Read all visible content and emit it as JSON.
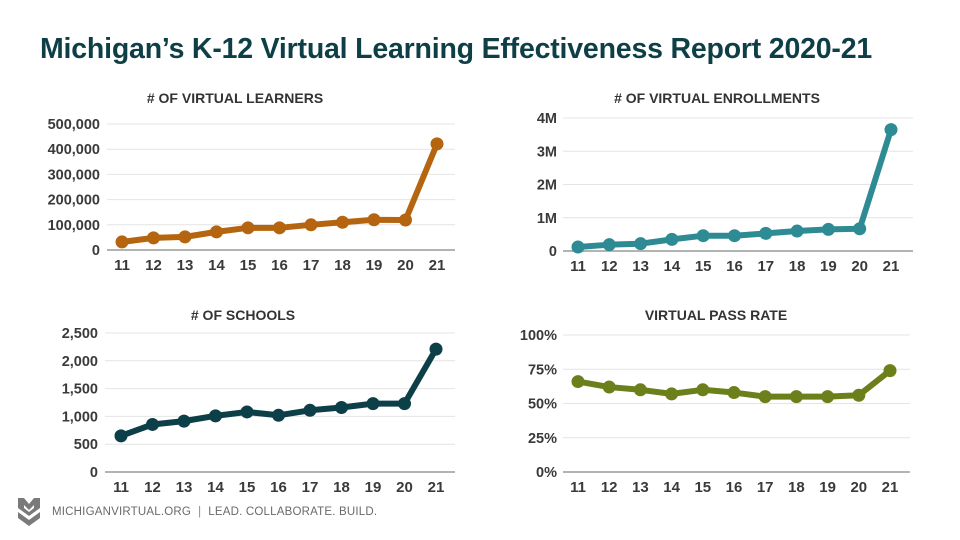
{
  "page": {
    "title": "Michigan’s K-12 Virtual Learning Effectiveness Report 2020-21"
  },
  "footer": {
    "logo_icon": "michigan-virtual-chevron-logo",
    "site": "MICHIGANVIRTUAL.ORG",
    "separator": "|",
    "tagline": "LEAD. COLLABORATE. BUILD."
  },
  "chart_data": [
    {
      "id": "learners",
      "type": "line",
      "title": "# OF VIRTUAL LEARNERS",
      "xlabel": "",
      "ylabel": "",
      "categories": [
        "11",
        "12",
        "13",
        "14",
        "15",
        "16",
        "17",
        "18",
        "19",
        "20",
        "21"
      ],
      "values": [
        32000,
        48000,
        52000,
        72000,
        88000,
        88000,
        100000,
        110000,
        120000,
        119000,
        421000
      ],
      "ylim": [
        0,
        500000
      ],
      "yticks": [
        0,
        100000,
        200000,
        300000,
        400000,
        500000
      ],
      "ytick_labels": [
        "0",
        "100,000",
        "200,000",
        "300,000",
        "400,000",
        "500,000"
      ],
      "color": "#b5650f",
      "grid": true,
      "legend": "none"
    },
    {
      "id": "enrollments",
      "type": "line",
      "title": "# OF VIRTUAL ENROLLMENTS",
      "xlabel": "",
      "ylabel": "",
      "categories": [
        "11",
        "12",
        "13",
        "14",
        "15",
        "16",
        "17",
        "18",
        "19",
        "20",
        "21"
      ],
      "values": [
        120000,
        190000,
        220000,
        350000,
        460000,
        460000,
        530000,
        600000,
        650000,
        670000,
        3650000
      ],
      "ylim": [
        0,
        4000000
      ],
      "yticks": [
        0,
        1000000,
        2000000,
        3000000,
        4000000
      ],
      "ytick_labels": [
        "0",
        "1M",
        "2M",
        "3M",
        "4M"
      ],
      "color": "#2e8b94",
      "grid": true,
      "legend": "none"
    },
    {
      "id": "schools",
      "type": "line",
      "title": "# OF SCHOOLS",
      "xlabel": "",
      "ylabel": "",
      "categories": [
        "11",
        "12",
        "13",
        "14",
        "15",
        "16",
        "17",
        "18",
        "19",
        "20",
        "21"
      ],
      "values": [
        650,
        855,
        915,
        1010,
        1080,
        1020,
        1110,
        1160,
        1230,
        1230,
        2210
      ],
      "ylim": [
        0,
        2500
      ],
      "yticks": [
        0,
        500,
        1000,
        1500,
        2000,
        2500
      ],
      "ytick_labels": [
        "0",
        "500",
        "1,000",
        "1,500",
        "2,000",
        "2,500"
      ],
      "color": "#0c3f47",
      "grid": true,
      "legend": "none"
    },
    {
      "id": "passrate",
      "type": "line",
      "title": "VIRTUAL PASS RATE",
      "xlabel": "",
      "ylabel": "",
      "categories": [
        "11",
        "12",
        "13",
        "14",
        "15",
        "16",
        "17",
        "18",
        "19",
        "20",
        "21"
      ],
      "values": [
        66,
        62,
        60,
        57,
        60,
        58,
        55,
        55,
        55,
        56,
        74
      ],
      "ylim": [
        0,
        100
      ],
      "yticks": [
        0,
        25,
        50,
        75,
        100
      ],
      "ytick_labels": [
        "0%",
        "25%",
        "50%",
        "75%",
        "100%"
      ],
      "color": "#6b7f1a",
      "grid": true,
      "legend": "none"
    }
  ]
}
